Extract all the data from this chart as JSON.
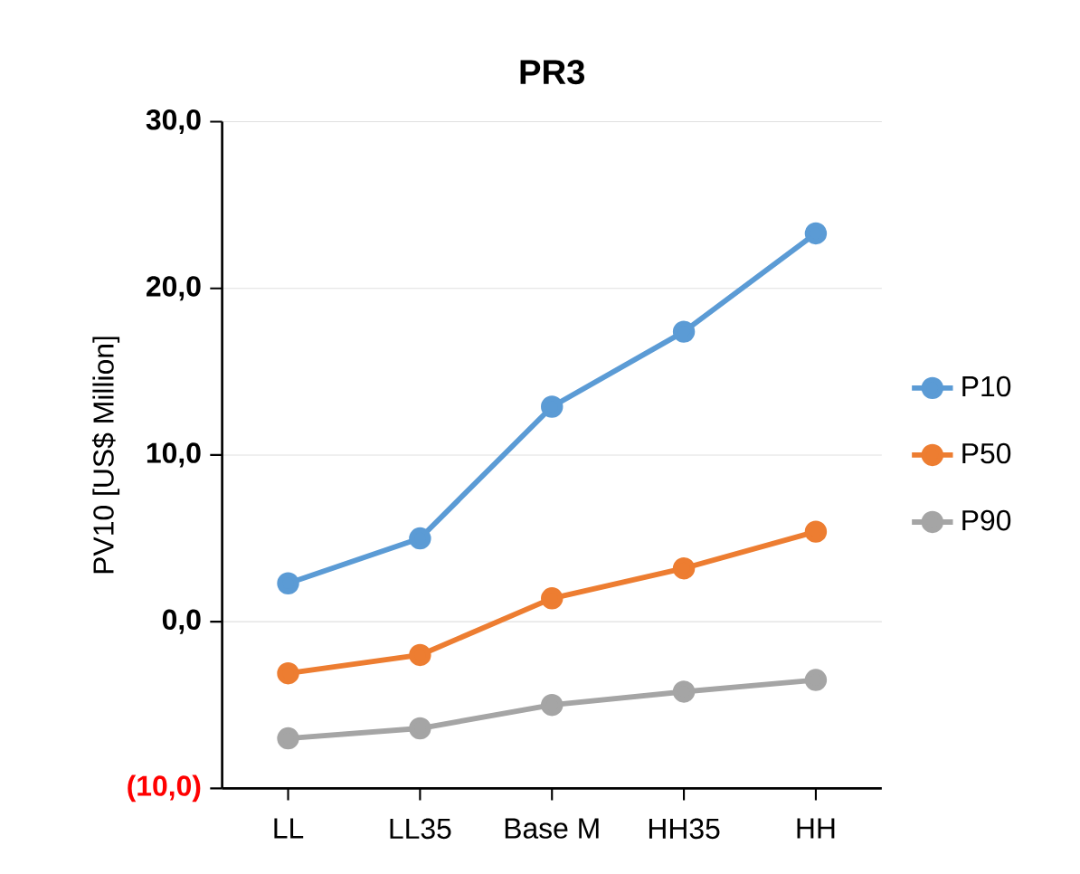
{
  "chart_data": {
    "type": "line",
    "title": "PR3",
    "ylabel": "PV10 [US$ Million]",
    "categories": [
      "LL",
      "LL35",
      "Base M",
      "HH35",
      "HH"
    ],
    "series": [
      {
        "name": "P10",
        "color": "#5b9bd5",
        "values": [
          2.3,
          5.0,
          12.9,
          17.4,
          23.3
        ]
      },
      {
        "name": "P50",
        "color": "#ed7d31",
        "values": [
          -3.1,
          -2.0,
          1.4,
          3.2,
          5.4
        ]
      },
      {
        "name": "P90",
        "color": "#a5a5a5",
        "values": [
          -7.0,
          -6.4,
          -5.0,
          -4.2,
          -3.5
        ]
      }
    ],
    "ylim": [
      -10,
      30
    ],
    "yticks": [
      {
        "value": -10,
        "label": "(10,0)"
      },
      {
        "value": 0,
        "label": "0,0"
      },
      {
        "value": 10,
        "label": "10,0"
      },
      {
        "value": 20,
        "label": "20,0"
      },
      {
        "value": 30,
        "label": "30,0"
      }
    ],
    "grid": "y",
    "legend": "right",
    "marker": "circle",
    "line_style": "solid"
  }
}
